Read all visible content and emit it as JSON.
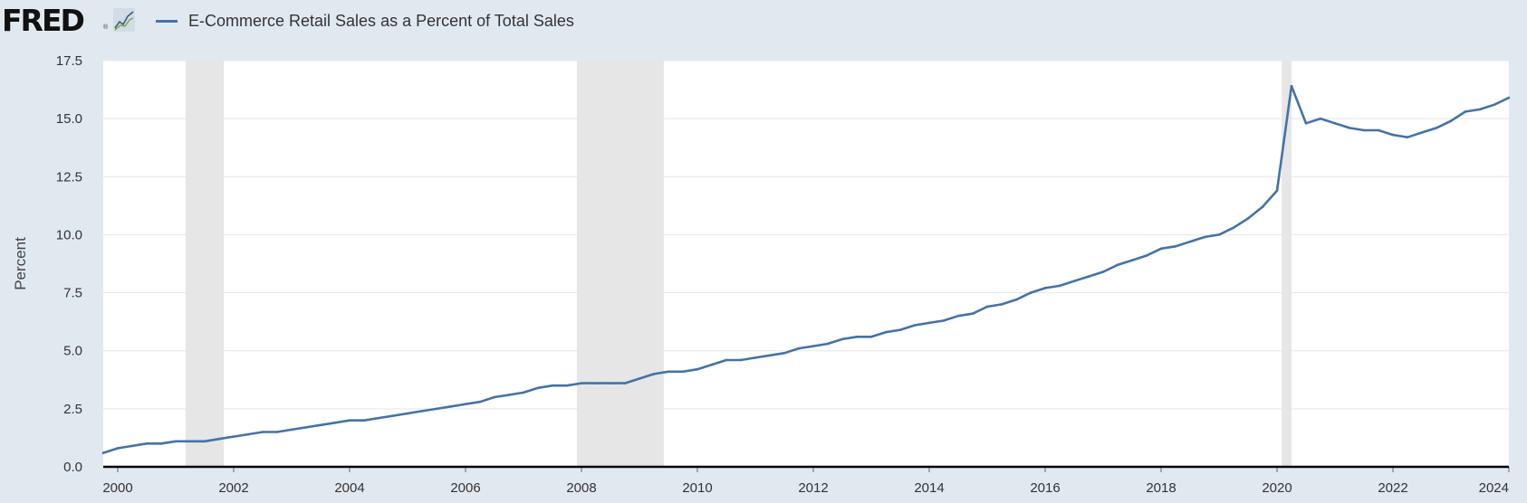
{
  "header": {
    "logo_text": "FRED",
    "logo_reg": "®",
    "logo_icon": "line-chart-icon"
  },
  "colors": {
    "background": "#e1e9f0",
    "plot_background": "#ffffff",
    "series": "#4572a7",
    "recession": "#e6e6e6",
    "grid": "#e6e6e6",
    "axis": "#000000"
  },
  "chart_data": {
    "type": "line",
    "title": "",
    "xlabel": "",
    "ylabel": "Percent",
    "xlim": [
      1999.75,
      2024.0
    ],
    "ylim": [
      0,
      17.5
    ],
    "yticks": [
      "0.0",
      "2.5",
      "5.0",
      "7.5",
      "10.0",
      "12.5",
      "15.0",
      "17.5"
    ],
    "xticks": [
      "2000",
      "2002",
      "2004",
      "2006",
      "2008",
      "2010",
      "2012",
      "2014",
      "2016",
      "2018",
      "2020",
      "2022",
      "2024"
    ],
    "grid": true,
    "legend_position": "top-left",
    "recessions": [
      [
        2001.17,
        2001.83
      ],
      [
        2007.92,
        2009.42
      ],
      [
        2020.08,
        2020.25
      ]
    ],
    "series": [
      {
        "name": "E-Commerce Retail Sales as a Percent of Total Sales",
        "x": [
          1999.75,
          2000.0,
          2000.25,
          2000.5,
          2000.75,
          2001.0,
          2001.25,
          2001.5,
          2001.75,
          2002.0,
          2002.25,
          2002.5,
          2002.75,
          2003.0,
          2003.25,
          2003.5,
          2003.75,
          2004.0,
          2004.25,
          2004.5,
          2004.75,
          2005.0,
          2005.25,
          2005.5,
          2005.75,
          2006.0,
          2006.25,
          2006.5,
          2006.75,
          2007.0,
          2007.25,
          2007.5,
          2007.75,
          2008.0,
          2008.25,
          2008.5,
          2008.75,
          2009.0,
          2009.25,
          2009.5,
          2009.75,
          2010.0,
          2010.25,
          2010.5,
          2010.75,
          2011.0,
          2011.25,
          2011.5,
          2011.75,
          2012.0,
          2012.25,
          2012.5,
          2012.75,
          2013.0,
          2013.25,
          2013.5,
          2013.75,
          2014.0,
          2014.25,
          2014.5,
          2014.75,
          2015.0,
          2015.25,
          2015.5,
          2015.75,
          2016.0,
          2016.25,
          2016.5,
          2016.75,
          2017.0,
          2017.25,
          2017.5,
          2017.75,
          2018.0,
          2018.25,
          2018.5,
          2018.75,
          2019.0,
          2019.25,
          2019.5,
          2019.75,
          2020.0,
          2020.25,
          2020.5,
          2020.75,
          2021.0,
          2021.25,
          2021.5,
          2021.75,
          2022.0,
          2022.25,
          2022.5,
          2022.75,
          2023.0,
          2023.25,
          2023.5,
          2023.75,
          2024.0
        ],
        "values": [
          0.6,
          0.8,
          0.9,
          1.0,
          1.0,
          1.1,
          1.1,
          1.1,
          1.2,
          1.3,
          1.4,
          1.5,
          1.5,
          1.6,
          1.7,
          1.8,
          1.9,
          2.0,
          2.0,
          2.1,
          2.2,
          2.3,
          2.4,
          2.5,
          2.6,
          2.7,
          2.8,
          3.0,
          3.1,
          3.2,
          3.4,
          3.5,
          3.5,
          3.6,
          3.6,
          3.6,
          3.6,
          3.8,
          4.0,
          4.1,
          4.1,
          4.2,
          4.4,
          4.6,
          4.6,
          4.7,
          4.8,
          4.9,
          5.1,
          5.2,
          5.3,
          5.5,
          5.6,
          5.6,
          5.8,
          5.9,
          6.1,
          6.2,
          6.3,
          6.5,
          6.6,
          6.9,
          7.0,
          7.2,
          7.5,
          7.7,
          7.8,
          8.0,
          8.2,
          8.4,
          8.7,
          8.9,
          9.1,
          9.4,
          9.5,
          9.7,
          9.9,
          10.0,
          10.3,
          10.7,
          11.2,
          11.9,
          16.4,
          14.8,
          15.0,
          14.8,
          14.6,
          14.5,
          14.5,
          14.3,
          14.2,
          14.4,
          14.6,
          14.9,
          15.3,
          15.4,
          15.6,
          15.9
        ]
      }
    ]
  }
}
